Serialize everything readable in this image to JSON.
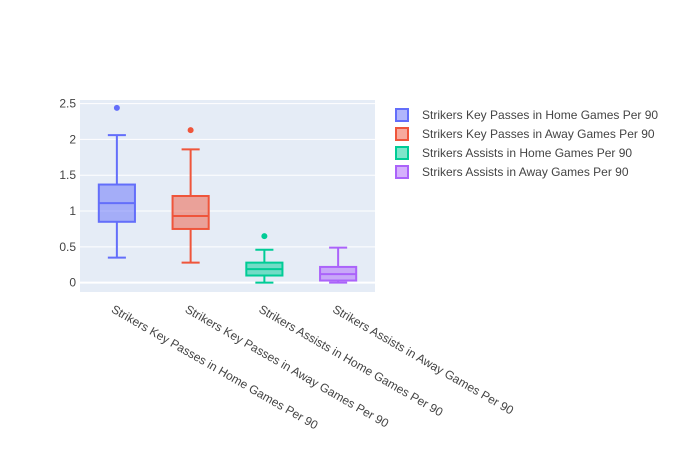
{
  "chart_data": {
    "type": "box",
    "title": "",
    "xlabel": "",
    "ylabel": "",
    "ylim": [
      -0.13,
      2.55
    ],
    "yticks": [
      "0",
      "0.5",
      "1",
      "1.5",
      "2",
      "2.5"
    ],
    "ytick_values": [
      0,
      0.5,
      1,
      1.5,
      2,
      2.5
    ],
    "grid": true,
    "legend_position": "top-right",
    "plot_background": "#e5ecf6",
    "categories": [
      "Strikers Key Passes in Home Games Per 90",
      "Strikers Key Passes in Away Games Per 90",
      "Strikers Assists in Home Games Per 90",
      "Strikers Assists in Away Games Per 90"
    ],
    "series": [
      {
        "name": "Strikers Key Passes in Home Games Per 90",
        "color": "#636efa",
        "lower_fence": 0.35,
        "q1": 0.85,
        "median": 1.11,
        "q3": 1.37,
        "upper_fence": 2.06,
        "outliers": [
          2.44
        ]
      },
      {
        "name": "Strikers Key Passes in Away Games Per 90",
        "color": "#ef553b",
        "lower_fence": 0.28,
        "q1": 0.75,
        "median": 0.93,
        "q3": 1.21,
        "upper_fence": 1.86,
        "outliers": [
          2.13
        ]
      },
      {
        "name": "Strikers Assists in Home Games Per 90",
        "color": "#00cc96",
        "lower_fence": 0.0,
        "q1": 0.1,
        "median": 0.19,
        "q3": 0.28,
        "upper_fence": 0.46,
        "outliers": [
          0.65
        ]
      },
      {
        "name": "Strikers Assists in Away Games Per 90",
        "color": "#ab63fa",
        "lower_fence": 0.0,
        "q1": 0.03,
        "median": 0.12,
        "q3": 0.22,
        "upper_fence": 0.49,
        "outliers": []
      }
    ]
  }
}
